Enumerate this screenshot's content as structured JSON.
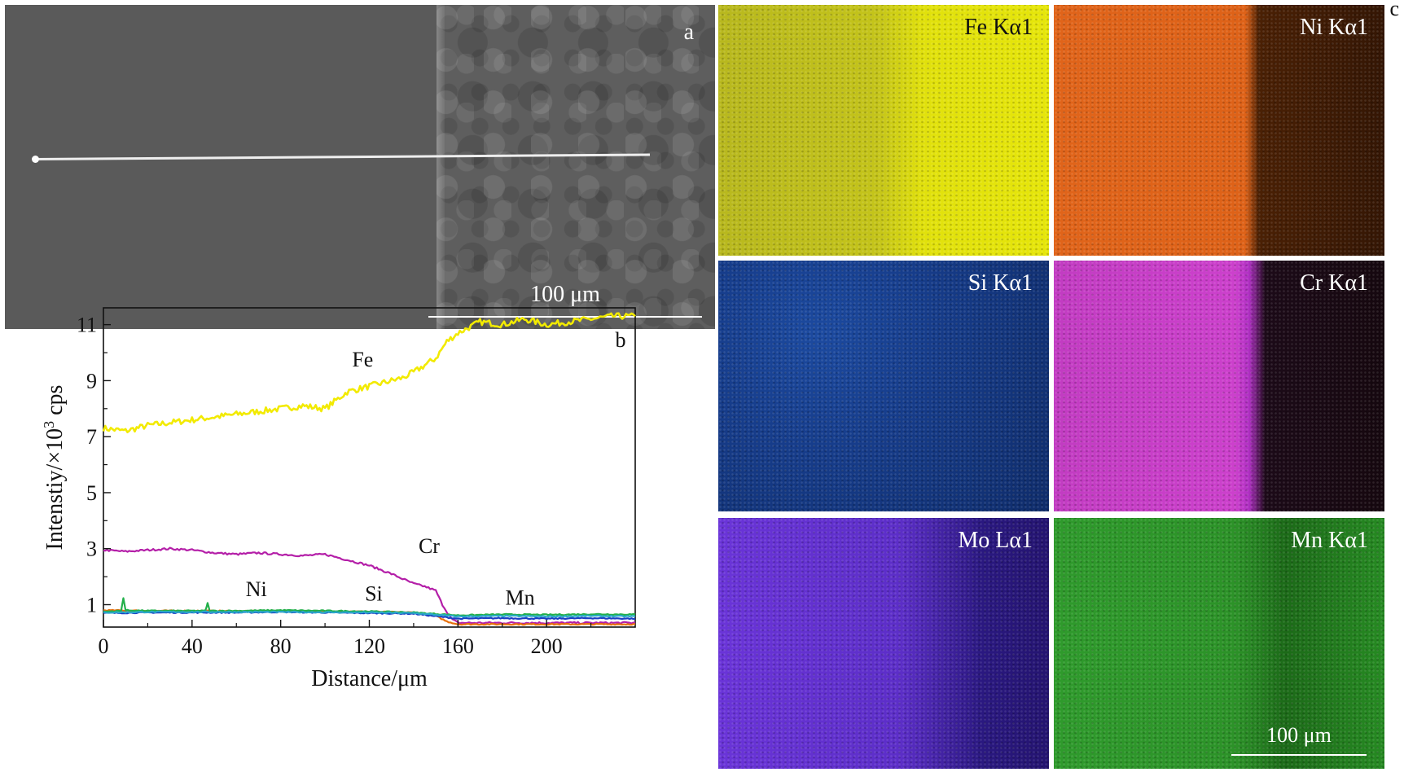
{
  "panel_a": {
    "letter": "a",
    "scale_label": "100 μm"
  },
  "panel_c": {
    "letter": "c",
    "maps": [
      {
        "label": "Fe Kα1",
        "label_color": "#111111"
      },
      {
        "label": "Ni Kα1",
        "label_color": "#ffffff"
      },
      {
        "label": "Si Kα1",
        "label_color": "#ffffff"
      },
      {
        "label": "Cr Kα1",
        "label_color": "#ffffff"
      },
      {
        "label": "Mo Lα1",
        "label_color": "#ffffff"
      },
      {
        "label": "Mn Kα1",
        "label_color": "#ffffff"
      }
    ],
    "scale_label": "100 μm"
  },
  "chart_data": {
    "type": "line",
    "panel_letter": "b",
    "xlabel": "Distance/μm",
    "ylabel_main": "Intenstiy/×10",
    "ylabel_sup": "3",
    "ylabel_unit": " cps",
    "xlim": [
      0,
      240
    ],
    "ylim": [
      0.2,
      11.6
    ],
    "xticks": [
      0,
      40,
      80,
      120,
      160,
      200
    ],
    "yticks": [
      1,
      3,
      5,
      7,
      9,
      11
    ],
    "series": [
      {
        "name": "Fe",
        "color": "#f2ea00",
        "x": [
          0,
          10,
          20,
          30,
          40,
          50,
          60,
          70,
          80,
          90,
          100,
          105,
          110,
          120,
          130,
          135,
          140,
          150,
          155,
          160,
          170,
          180,
          190,
          200,
          210,
          220,
          230,
          240
        ],
        "y": [
          7.3,
          7.2,
          7.4,
          7.5,
          7.6,
          7.7,
          7.8,
          7.9,
          8.0,
          8.1,
          8.0,
          8.3,
          8.6,
          8.8,
          9.0,
          9.1,
          9.3,
          9.8,
          10.4,
          10.7,
          11.1,
          11.0,
          11.2,
          11.0,
          11.1,
          11.2,
          11.3,
          11.3
        ]
      },
      {
        "name": "Cr",
        "color": "#b41fa8",
        "x": [
          0,
          10,
          20,
          30,
          40,
          50,
          60,
          70,
          80,
          90,
          100,
          110,
          120,
          130,
          140,
          145,
          150,
          153,
          157,
          160,
          170,
          180,
          200,
          220,
          240
        ],
        "y": [
          2.95,
          2.9,
          2.95,
          3.0,
          2.95,
          2.85,
          2.8,
          2.85,
          2.8,
          2.75,
          2.8,
          2.6,
          2.4,
          2.1,
          1.75,
          1.65,
          1.5,
          1.0,
          0.5,
          0.35,
          0.35,
          0.35,
          0.35,
          0.35,
          0.35
        ]
      },
      {
        "name": "Ni",
        "color": "#e8700c",
        "x": [
          0,
          20,
          40,
          60,
          80,
          100,
          120,
          140,
          150,
          155,
          160,
          180,
          200,
          220,
          240
        ],
        "y": [
          0.8,
          0.78,
          0.78,
          0.77,
          0.77,
          0.76,
          0.75,
          0.72,
          0.6,
          0.4,
          0.3,
          0.3,
          0.3,
          0.3,
          0.3
        ]
      },
      {
        "name": "Si",
        "color": "#1a3fc4",
        "x": [
          0,
          20,
          40,
          60,
          80,
          100,
          120,
          140,
          160,
          180,
          200,
          220,
          240
        ],
        "y": [
          0.7,
          0.72,
          0.72,
          0.72,
          0.74,
          0.72,
          0.7,
          0.68,
          0.5,
          0.52,
          0.5,
          0.52,
          0.5
        ]
      },
      {
        "name": "Mn",
        "color": "#22b04a",
        "x": [
          0,
          8,
          9,
          10,
          20,
          46,
          47,
          48,
          60,
          80,
          100,
          120,
          140,
          160,
          180,
          200,
          220,
          240
        ],
        "y": [
          0.75,
          0.78,
          1.25,
          0.8,
          0.78,
          0.78,
          1.05,
          0.78,
          0.78,
          0.8,
          0.78,
          0.76,
          0.72,
          0.62,
          0.65,
          0.64,
          0.66,
          0.65
        ]
      },
      {
        "name": "",
        "color": "#2aa8c8",
        "x": [
          0,
          20,
          40,
          60,
          80,
          100,
          120,
          140,
          160,
          180,
          200,
          220,
          240
        ],
        "y": [
          0.72,
          0.74,
          0.74,
          0.74,
          0.74,
          0.73,
          0.72,
          0.7,
          0.58,
          0.6,
          0.58,
          0.6,
          0.58
        ]
      }
    ],
    "annotations": [
      {
        "text": "Fe",
        "x": 117,
        "y": 9.5
      },
      {
        "text": "Cr",
        "x": 147,
        "y": 2.85
      },
      {
        "text": "Ni",
        "x": 69,
        "y": 1.3
      },
      {
        "text": "Si",
        "x": 122,
        "y": 1.15
      },
      {
        "text": "Mn",
        "x": 188,
        "y": 1.0
      }
    ]
  }
}
